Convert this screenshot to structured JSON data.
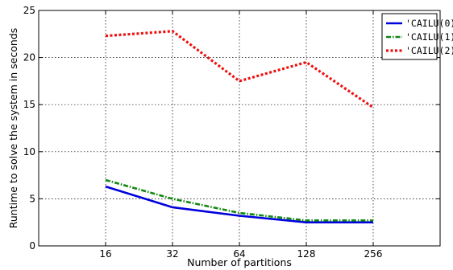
{
  "chart_data": {
    "type": "line",
    "title": "",
    "xlabel": "Number of partitions",
    "ylabel": "Runtime to solve the system in seconds",
    "categories": [
      "16",
      "32",
      "64",
      "128",
      "256"
    ],
    "ylim": [
      0,
      25
    ],
    "yticks": [
      0,
      5,
      10,
      15,
      20,
      25
    ],
    "grid": true,
    "legend_position": "top-right",
    "series": [
      {
        "name": "'CAILU(0)'",
        "color": "#0000dd",
        "style": "solid",
        "values": [
          6.3,
          4.1,
          3.2,
          2.5,
          2.5
        ]
      },
      {
        "name": "'CAILU(1)'",
        "color": "#118811",
        "style": "dashdot",
        "values": [
          7.0,
          5.0,
          3.5,
          2.7,
          2.7
        ]
      },
      {
        "name": "'CAILU(2)'",
        "color": "#ee1111",
        "style": "dotted",
        "values": [
          22.3,
          22.8,
          17.5,
          19.5,
          14.7
        ]
      }
    ]
  }
}
